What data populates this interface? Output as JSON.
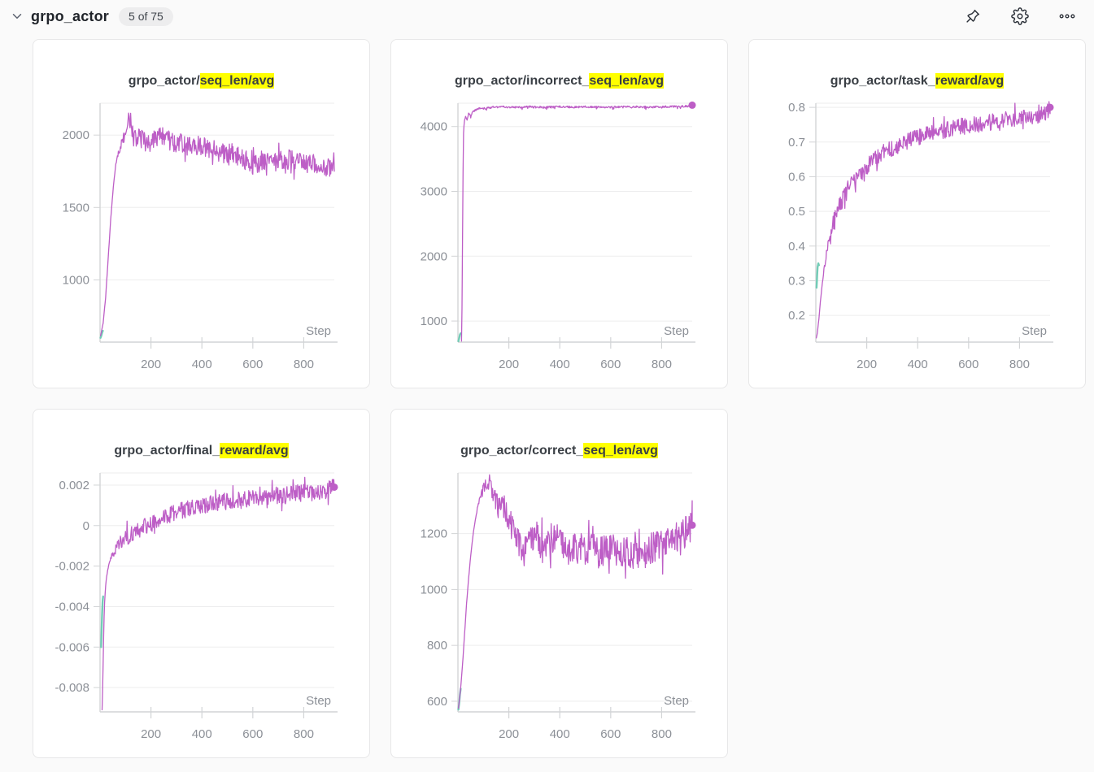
{
  "header": {
    "title": "grpo_actor",
    "badge": "5 of 75",
    "icons": [
      "chevron-down-icon",
      "pin-icon",
      "gear-icon",
      "ellipsis-icon"
    ]
  },
  "colors": {
    "run_magenta": "#bd5ec6",
    "run_teal": "#72ccb6",
    "highlight": "#ffff00",
    "grid": "#ededee",
    "axis": "#d2d4d6",
    "tick_text": "#8c9097"
  },
  "chart_data": [
    {
      "type": "line",
      "title_prefix": "grpo_actor/",
      "title_highlight": "seq_len/avg",
      "xlabel": "Step",
      "xlim": [
        0,
        920
      ],
      "x_ticks": [
        200,
        400,
        600,
        800
      ],
      "ylim": [
        570,
        2220
      ],
      "y_ticks": [
        1000,
        1500,
        2000
      ],
      "y_tick_labels": [
        "1000",
        "1500",
        "2000"
      ],
      "legend": "none",
      "grid": "horizontal",
      "series": [
        {
          "color": "#72ccb6",
          "width": 2.4,
          "noise": 0,
          "end_dot": false,
          "points": [
            [
              2,
              600
            ],
            [
              5,
              615
            ],
            [
              8,
              635
            ],
            [
              11,
              648
            ]
          ]
        },
        {
          "color": "#bd5ec6",
          "width": 1.3,
          "noise": 70,
          "noise_from": 55,
          "noise_full": 115,
          "end_dot": false,
          "points": [
            [
              2,
              615
            ],
            [
              12,
              700
            ],
            [
              22,
              880
            ],
            [
              32,
              1150
            ],
            [
              42,
              1420
            ],
            [
              52,
              1640
            ],
            [
              62,
              1800
            ],
            [
              72,
              1880
            ],
            [
              82,
              1930
            ],
            [
              95,
              1990
            ],
            [
              105,
              2090
            ],
            [
              115,
              2150
            ],
            [
              125,
              2020
            ],
            [
              140,
              1960
            ],
            [
              160,
              1980
            ],
            [
              180,
              1940
            ],
            [
              200,
              1970
            ],
            [
              240,
              1990
            ],
            [
              280,
              1950
            ],
            [
              320,
              1940
            ],
            [
              360,
              1920
            ],
            [
              400,
              1930
            ],
            [
              440,
              1900
            ],
            [
              480,
              1870
            ],
            [
              520,
              1880
            ],
            [
              560,
              1840
            ],
            [
              600,
              1790
            ],
            [
              640,
              1830
            ],
            [
              680,
              1800
            ],
            [
              720,
              1840
            ],
            [
              760,
              1820
            ],
            [
              800,
              1800
            ],
            [
              840,
              1820
            ],
            [
              870,
              1780
            ],
            [
              900,
              1770
            ],
            [
              920,
              1750
            ]
          ]
        }
      ]
    },
    {
      "type": "line",
      "title_prefix": "grpo_actor/incorrect_",
      "title_highlight": "seq_len/avg",
      "xlabel": "Step",
      "xlim": [
        0,
        920
      ],
      "x_ticks": [
        200,
        400,
        600,
        800
      ],
      "ylim": [
        675,
        4360
      ],
      "y_ticks": [
        1000,
        2000,
        3000,
        4000
      ],
      "y_tick_labels": [
        "1000",
        "2000",
        "3000",
        "4000"
      ],
      "legend": "none",
      "grid": "horizontal",
      "series": [
        {
          "color": "#72ccb6",
          "width": 2.4,
          "noise": 0,
          "end_dot": false,
          "points": [
            [
              2,
              690
            ],
            [
              5,
              740
            ],
            [
              8,
              790
            ],
            [
              11,
              810
            ]
          ]
        },
        {
          "color": "#bd5ec6",
          "width": 1.3,
          "noise": 30,
          "noise_mode": "down",
          "noise_from": 24,
          "noise_full": 55,
          "end_dot": true,
          "points": [
            [
              14,
              690
            ],
            [
              16,
              1200
            ],
            [
              18,
              2200
            ],
            [
              20,
              3300
            ],
            [
              22,
              3900
            ],
            [
              25,
              4080
            ],
            [
              30,
              4160
            ],
            [
              36,
              4100
            ],
            [
              42,
              4210
            ],
            [
              50,
              4180
            ],
            [
              58,
              4240
            ],
            [
              70,
              4270
            ],
            [
              85,
              4300
            ],
            [
              100,
              4290
            ],
            [
              130,
              4310
            ],
            [
              170,
              4320
            ],
            [
              220,
              4310
            ],
            [
              280,
              4320
            ],
            [
              340,
              4310
            ],
            [
              400,
              4320
            ],
            [
              460,
              4315
            ],
            [
              520,
              4320
            ],
            [
              580,
              4310
            ],
            [
              640,
              4320
            ],
            [
              700,
              4320
            ],
            [
              760,
              4315
            ],
            [
              820,
              4320
            ],
            [
              870,
              4325
            ],
            [
              920,
              4330
            ]
          ]
        }
      ]
    },
    {
      "type": "line",
      "title_prefix": "grpo_actor/task_",
      "title_highlight": "reward/avg",
      "xlabel": "Step",
      "xlim": [
        0,
        920
      ],
      "x_ticks": [
        200,
        400,
        600,
        800
      ],
      "ylim": [
        0.123,
        0.812
      ],
      "y_ticks": [
        0.2,
        0.3,
        0.4,
        0.5,
        0.6,
        0.7,
        0.8
      ],
      "y_tick_labels": [
        "0.2",
        "0.3",
        "0.4",
        "0.5",
        "0.6",
        "0.7",
        "0.8"
      ],
      "legend": "none",
      "grid": "horizontal",
      "series": [
        {
          "color": "#72ccb6",
          "width": 2.4,
          "noise": 0,
          "end_dot": false,
          "points": [
            [
              3,
              0.28
            ],
            [
              5,
              0.315
            ],
            [
              7,
              0.34
            ],
            [
              10,
              0.35
            ],
            [
              12,
              0.345
            ]
          ]
        },
        {
          "color": "#bd5ec6",
          "width": 1.3,
          "noise": 0.024,
          "noise_from": 22,
          "noise_full": 60,
          "end_dot": true,
          "points": [
            [
              2,
              0.135
            ],
            [
              6,
              0.15
            ],
            [
              12,
              0.19
            ],
            [
              18,
              0.24
            ],
            [
              25,
              0.29
            ],
            [
              32,
              0.33
            ],
            [
              40,
              0.37
            ],
            [
              50,
              0.41
            ],
            [
              60,
              0.44
            ],
            [
              70,
              0.47
            ],
            [
              80,
              0.49
            ],
            [
              95,
              0.52
            ],
            [
              110,
              0.54
            ],
            [
              130,
              0.57
            ],
            [
              150,
              0.59
            ],
            [
              175,
              0.61
            ],
            [
              200,
              0.63
            ],
            [
              230,
              0.65
            ],
            [
              260,
              0.67
            ],
            [
              290,
              0.68
            ],
            [
              320,
              0.69
            ],
            [
              350,
              0.7
            ],
            [
              390,
              0.71
            ],
            [
              430,
              0.72
            ],
            [
              470,
              0.73
            ],
            [
              510,
              0.735
            ],
            [
              550,
              0.74
            ],
            [
              590,
              0.75
            ],
            [
              630,
              0.75
            ],
            [
              670,
              0.755
            ],
            [
              710,
              0.76
            ],
            [
              750,
              0.765
            ],
            [
              790,
              0.77
            ],
            [
              830,
              0.77
            ],
            [
              870,
              0.775
            ],
            [
              900,
              0.785
            ],
            [
              920,
              0.8
            ]
          ]
        }
      ]
    },
    {
      "type": "line",
      "title_prefix": "grpo_actor/final_",
      "title_highlight": "reward/avg",
      "xlabel": "Step",
      "xlim": [
        0,
        920
      ],
      "x_ticks": [
        200,
        400,
        600,
        800
      ],
      "ylim": [
        -0.0092,
        0.0026
      ],
      "y_ticks": [
        0.002,
        0,
        -0.002,
        -0.004,
        -0.006,
        -0.008
      ],
      "y_tick_labels": [
        "0.002",
        "0",
        "-0.002",
        "-0.004",
        "-0.006",
        "-0.008"
      ],
      "legend": "none",
      "grid": "horizontal",
      "series": [
        {
          "color": "#72ccb6",
          "width": 2.4,
          "noise": 0,
          "end_dot": false,
          "points": [
            [
              4,
              -0.006
            ],
            [
              6,
              -0.0052
            ],
            [
              8,
              -0.0044
            ],
            [
              10,
              -0.0038
            ],
            [
              12,
              -0.0035
            ]
          ]
        },
        {
          "color": "#bd5ec6",
          "width": 1.3,
          "noise": 0.00042,
          "noise_from": 28,
          "noise_full": 75,
          "end_dot": true,
          "points": [
            [
              8,
              -0.0091
            ],
            [
              10,
              -0.0082
            ],
            [
              12,
              -0.0068
            ],
            [
              14,
              -0.0055
            ],
            [
              16,
              -0.0045
            ],
            [
              18,
              -0.0038
            ],
            [
              21,
              -0.0031
            ],
            [
              25,
              -0.0026
            ],
            [
              30,
              -0.0022
            ],
            [
              36,
              -0.0019
            ],
            [
              44,
              -0.0016
            ],
            [
              54,
              -0.0013
            ],
            [
              66,
              -0.0011
            ],
            [
              80,
              -0.0009
            ],
            [
              100,
              -0.0006
            ],
            [
              125,
              -0.0004
            ],
            [
              150,
              -0.0002
            ],
            [
              180,
              0
            ],
            [
              215,
              0.0002
            ],
            [
              250,
              0.0004
            ],
            [
              290,
              0.0006
            ],
            [
              330,
              0.0008
            ],
            [
              370,
              0.0009
            ],
            [
              410,
              0.001
            ],
            [
              450,
              0.0011
            ],
            [
              490,
              0.0012
            ],
            [
              530,
              0.0012
            ],
            [
              570,
              0.0013
            ],
            [
              610,
              0.0014
            ],
            [
              650,
              0.0014
            ],
            [
              690,
              0.0015
            ],
            [
              730,
              0.0015
            ],
            [
              770,
              0.0016
            ],
            [
              810,
              0.0016
            ],
            [
              850,
              0.0016
            ],
            [
              880,
              0.0017
            ],
            [
              900,
              0.0018
            ],
            [
              920,
              0.0019
            ]
          ]
        }
      ]
    },
    {
      "type": "line",
      "title_prefix": "grpo_actor/correct_",
      "title_highlight": "seq_len/avg",
      "xlabel": "Step",
      "xlim": [
        0,
        920
      ],
      "x_ticks": [
        200,
        400,
        600,
        800
      ],
      "ylim": [
        562,
        1417
      ],
      "y_ticks": [
        600,
        800,
        1000,
        1200
      ],
      "y_tick_labels": [
        "600",
        "800",
        "1000",
        "1200"
      ],
      "legend": "none",
      "grid": "horizontal",
      "series": [
        {
          "color": "#72ccb6",
          "width": 2.4,
          "noise": 0,
          "end_dot": false,
          "points": [
            [
              2,
              570
            ],
            [
              5,
              595
            ],
            [
              8,
              625
            ],
            [
              11,
              645
            ]
          ]
        },
        {
          "color": "#bd5ec6",
          "width": 1.3,
          "noise": 58,
          "noise_from": 60,
          "noise_full": 200,
          "end_dot": true,
          "points": [
            [
              2,
              575
            ],
            [
              10,
              640
            ],
            [
              18,
              730
            ],
            [
              26,
              840
            ],
            [
              34,
              950
            ],
            [
              42,
              1040
            ],
            [
              50,
              1120
            ],
            [
              60,
              1200
            ],
            [
              70,
              1260
            ],
            [
              80,
              1310
            ],
            [
              95,
              1350
            ],
            [
              110,
              1380
            ],
            [
              125,
              1385
            ],
            [
              140,
              1340
            ],
            [
              155,
              1300
            ],
            [
              170,
              1320
            ],
            [
              185,
              1290
            ],
            [
              200,
              1260
            ],
            [
              215,
              1220
            ],
            [
              230,
              1180
            ],
            [
              245,
              1140
            ],
            [
              260,
              1130
            ],
            [
              275,
              1160
            ],
            [
              290,
              1190
            ],
            [
              305,
              1195
            ],
            [
              320,
              1160
            ],
            [
              335,
              1140
            ],
            [
              355,
              1165
            ],
            [
              375,
              1190
            ],
            [
              395,
              1175
            ],
            [
              415,
              1160
            ],
            [
              435,
              1145
            ],
            [
              455,
              1150
            ],
            [
              475,
              1140
            ],
            [
              495,
              1135
            ],
            [
              515,
              1155
            ],
            [
              535,
              1145
            ],
            [
              555,
              1125
            ],
            [
              575,
              1140
            ],
            [
              595,
              1150
            ],
            [
              615,
              1135
            ],
            [
              635,
              1120
            ],
            [
              655,
              1145
            ],
            [
              675,
              1135
            ],
            [
              695,
              1125
            ],
            [
              715,
              1140
            ],
            [
              735,
              1130
            ],
            [
              755,
              1145
            ],
            [
              775,
              1155
            ],
            [
              795,
              1150
            ],
            [
              815,
              1175
            ],
            [
              835,
              1165
            ],
            [
              855,
              1185
            ],
            [
              875,
              1180
            ],
            [
              895,
              1205
            ],
            [
              920,
              1230
            ]
          ]
        }
      ]
    }
  ]
}
